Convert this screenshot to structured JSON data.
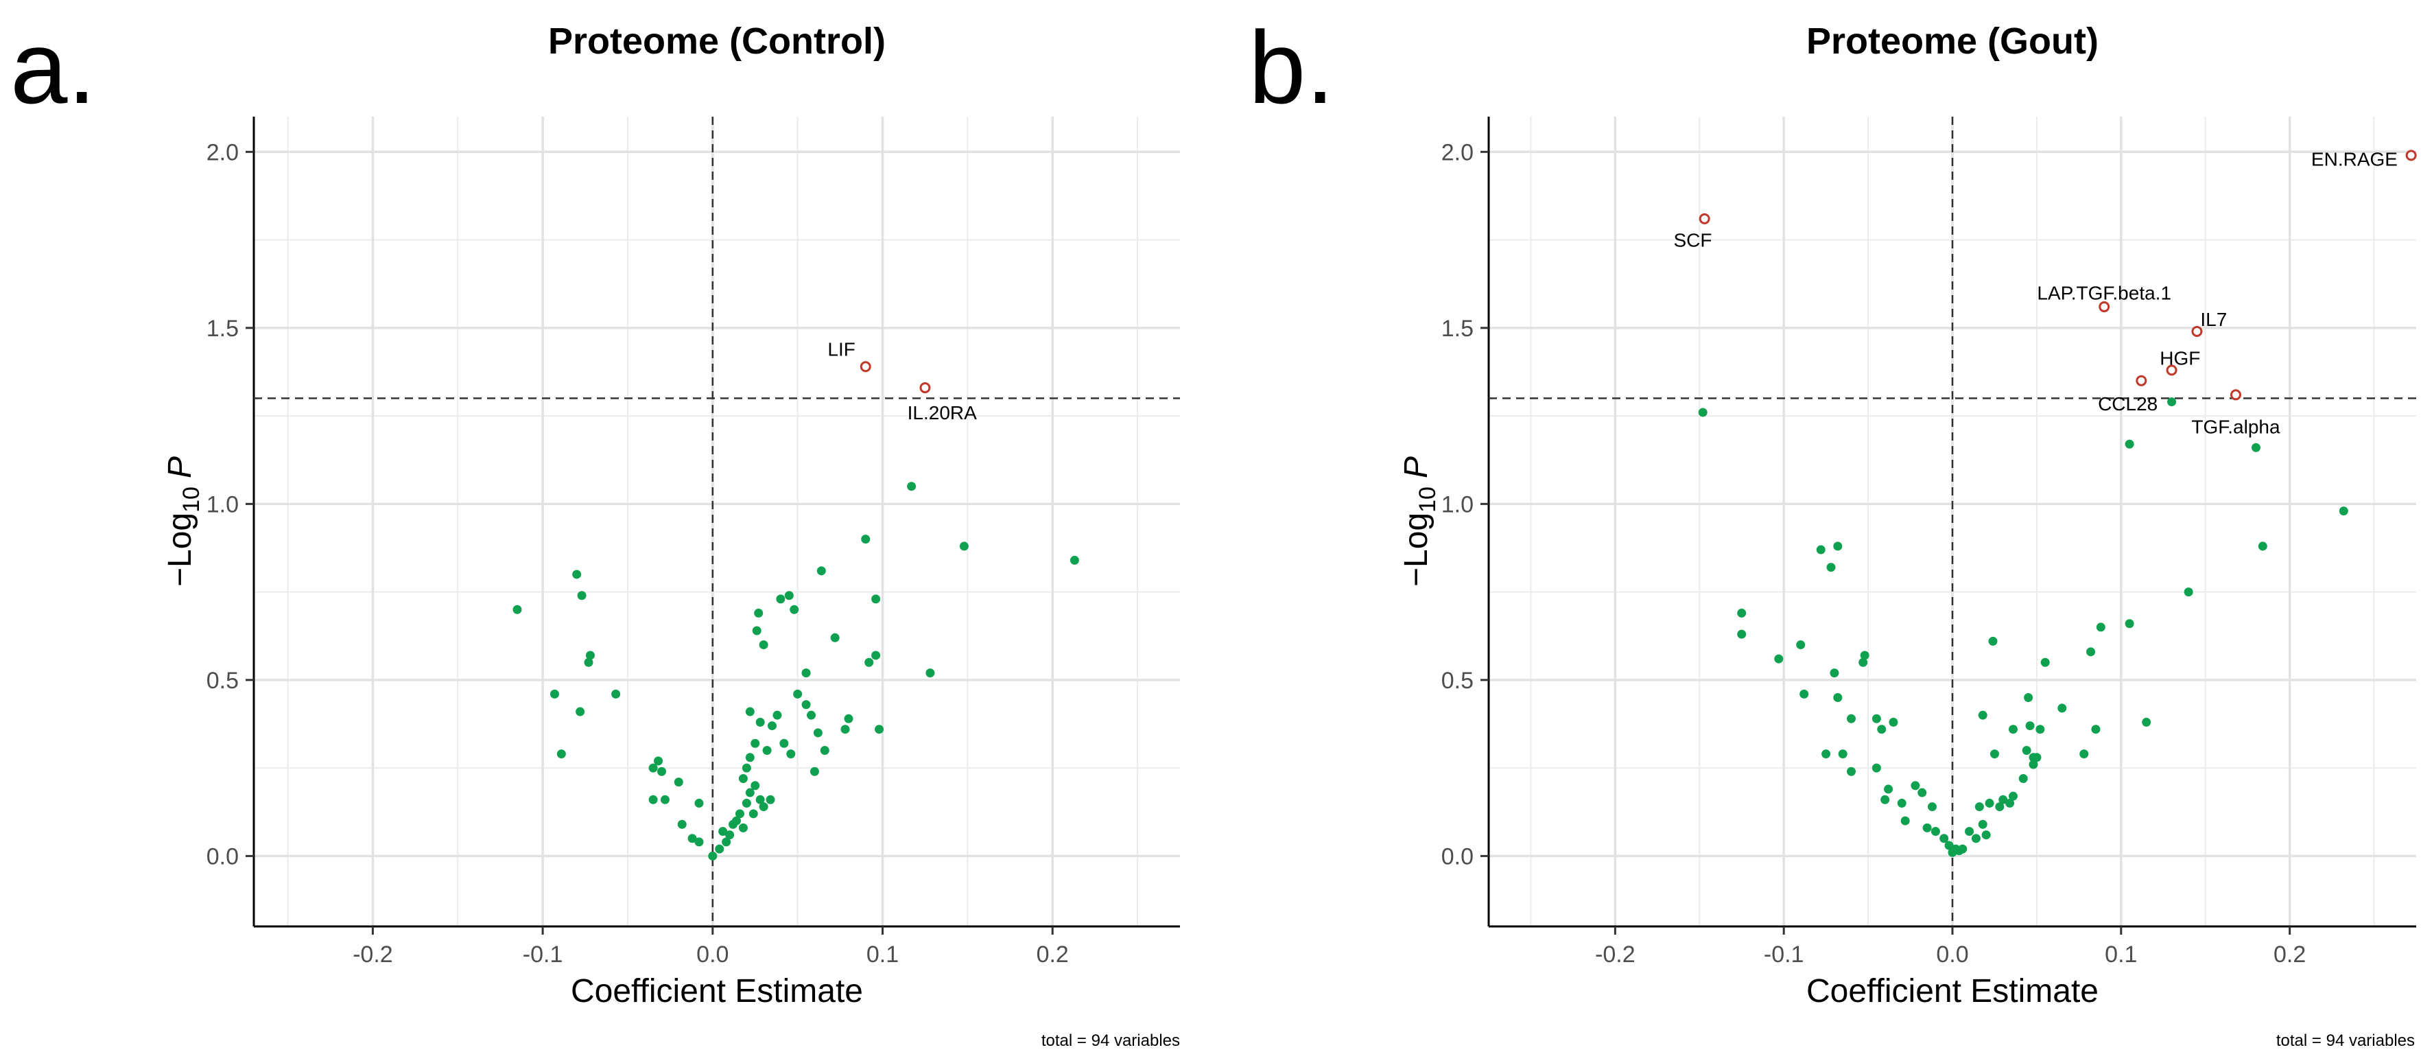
{
  "chart_data": [
    {
      "type": "scatter",
      "panel_letter": "a.",
      "title": "Proteome (Control)",
      "xlabel": "Coefficient Estimate",
      "ylabel_prefix": "−Log",
      "ylabel_subscript": "10",
      "ylabel_var": "P",
      "caption": "total = 94 variables",
      "xlim": [
        -0.27,
        0.275
      ],
      "ylim": [
        -0.2,
        2.1
      ],
      "xticks": [
        -0.2,
        -0.1,
        0.0,
        0.1,
        0.2
      ],
      "xtick_labels": [
        "-0.2",
        "-0.1",
        "0.0",
        "0.1",
        "0.2"
      ],
      "yticks": [
        0.0,
        0.5,
        1.0,
        1.5,
        2.0
      ],
      "ytick_labels": [
        "0.0",
        "0.5",
        "1.0",
        "1.5",
        "2.0"
      ],
      "threshold_y": 1.3,
      "vline_x": 0.0,
      "grid": true,
      "point_color": "#0fa14f",
      "highlight_color": "#c0392b",
      "points": [
        [
          -0.115,
          0.7
        ],
        [
          -0.08,
          0.8
        ],
        [
          -0.077,
          0.74
        ],
        [
          -0.072,
          0.57
        ],
        [
          -0.073,
          0.55
        ],
        [
          -0.093,
          0.46
        ],
        [
          -0.078,
          0.41
        ],
        [
          -0.057,
          0.46
        ],
        [
          -0.089,
          0.29
        ],
        [
          -0.032,
          0.27
        ],
        [
          -0.035,
          0.25
        ],
        [
          -0.03,
          0.24
        ],
        [
          -0.02,
          0.21
        ],
        [
          -0.028,
          0.16
        ],
        [
          -0.035,
          0.16
        ],
        [
          -0.018,
          0.09
        ],
        [
          -0.008,
          0.15
        ],
        [
          -0.012,
          0.05
        ],
        [
          -0.008,
          0.04
        ],
        [
          0.0,
          0.0
        ],
        [
          0.004,
          0.02
        ],
        [
          0.008,
          0.04
        ],
        [
          0.006,
          0.07
        ],
        [
          0.01,
          0.06
        ],
        [
          0.012,
          0.09
        ],
        [
          0.014,
          0.1
        ],
        [
          0.016,
          0.12
        ],
        [
          0.018,
          0.08
        ],
        [
          0.02,
          0.15
        ],
        [
          0.022,
          0.18
        ],
        [
          0.024,
          0.12
        ],
        [
          0.025,
          0.2
        ],
        [
          0.028,
          0.16
        ],
        [
          0.03,
          0.14
        ],
        [
          0.018,
          0.22
        ],
        [
          0.02,
          0.25
        ],
        [
          0.022,
          0.28
        ],
        [
          0.025,
          0.32
        ],
        [
          0.032,
          0.3
        ],
        [
          0.035,
          0.37
        ],
        [
          0.028,
          0.38
        ],
        [
          0.038,
          0.4
        ],
        [
          0.022,
          0.41
        ],
        [
          0.034,
          0.16
        ],
        [
          0.042,
          0.32
        ],
        [
          0.046,
          0.29
        ],
        [
          0.04,
          0.73
        ],
        [
          0.045,
          0.74
        ],
        [
          0.048,
          0.7
        ],
        [
          0.055,
          0.52
        ],
        [
          0.05,
          0.46
        ],
        [
          0.055,
          0.43
        ],
        [
          0.058,
          0.4
        ],
        [
          0.062,
          0.35
        ],
        [
          0.06,
          0.24
        ],
        [
          0.066,
          0.3
        ],
        [
          0.026,
          0.64
        ],
        [
          0.027,
          0.69
        ],
        [
          0.03,
          0.6
        ],
        [
          0.064,
          0.81
        ],
        [
          0.072,
          0.62
        ],
        [
          0.078,
          0.36
        ],
        [
          0.08,
          0.39
        ],
        [
          0.09,
          0.9
        ],
        [
          0.096,
          0.73
        ],
        [
          0.092,
          0.55
        ],
        [
          0.096,
          0.57
        ],
        [
          0.098,
          0.36
        ],
        [
          0.117,
          1.05
        ],
        [
          0.128,
          0.52
        ],
        [
          0.148,
          0.88
        ],
        [
          0.213,
          0.84
        ]
      ],
      "highlights": [
        {
          "label": "LIF",
          "x": 0.09,
          "y": 1.39,
          "label_dx": -0.006,
          "label_dy": 0.05,
          "anchor": "end"
        },
        {
          "label": "IL.20RA",
          "x": 0.125,
          "y": 1.33,
          "label_dx": 0.01,
          "label_dy": -0.07,
          "anchor": "middle"
        }
      ]
    },
    {
      "type": "scatter",
      "panel_letter": "b.",
      "title": "Proteome (Gout)",
      "xlabel": "Coefficient Estimate",
      "ylabel_prefix": "−Log",
      "ylabel_subscript": "10",
      "ylabel_var": "P",
      "caption": "total = 94 variables",
      "xlim": [
        -0.275,
        0.275
      ],
      "ylim": [
        -0.2,
        2.1
      ],
      "xticks": [
        -0.2,
        -0.1,
        0.0,
        0.1,
        0.2
      ],
      "xtick_labels": [
        "-0.2",
        "-0.1",
        "0.0",
        "0.1",
        "0.2"
      ],
      "yticks": [
        0.0,
        0.5,
        1.0,
        1.5,
        2.0
      ],
      "ytick_labels": [
        "0.0",
        "0.5",
        "1.0",
        "1.5",
        "2.0"
      ],
      "threshold_y": 1.3,
      "vline_x": 0.0,
      "grid": true,
      "point_color": "#0fa14f",
      "highlight_color": "#c0392b",
      "points": [
        [
          -0.148,
          1.26
        ],
        [
          -0.125,
          0.69
        ],
        [
          -0.125,
          0.63
        ],
        [
          -0.103,
          0.56
        ],
        [
          -0.09,
          0.6
        ],
        [
          -0.088,
          0.46
        ],
        [
          -0.078,
          0.87
        ],
        [
          -0.068,
          0.88
        ],
        [
          -0.072,
          0.82
        ],
        [
          -0.07,
          0.52
        ],
        [
          -0.068,
          0.45
        ],
        [
          -0.075,
          0.29
        ],
        [
          -0.065,
          0.29
        ],
        [
          -0.06,
          0.39
        ],
        [
          -0.052,
          0.57
        ],
        [
          -0.053,
          0.55
        ],
        [
          -0.045,
          0.39
        ],
        [
          -0.035,
          0.38
        ],
        [
          -0.042,
          0.36
        ],
        [
          -0.045,
          0.25
        ],
        [
          -0.06,
          0.24
        ],
        [
          -0.038,
          0.19
        ],
        [
          -0.04,
          0.16
        ],
        [
          -0.03,
          0.15
        ],
        [
          -0.022,
          0.2
        ],
        [
          -0.018,
          0.18
        ],
        [
          -0.012,
          0.14
        ],
        [
          -0.028,
          0.1
        ],
        [
          -0.015,
          0.08
        ],
        [
          -0.01,
          0.07
        ],
        [
          -0.005,
          0.05
        ],
        [
          -0.002,
          0.03
        ],
        [
          0.0,
          0.01
        ],
        [
          0.002,
          0.02
        ],
        [
          0.004,
          0.015
        ],
        [
          0.006,
          0.02
        ],
        [
          0.01,
          0.07
        ],
        [
          0.014,
          0.05
        ],
        [
          0.018,
          0.09
        ],
        [
          0.02,
          0.06
        ],
        [
          0.016,
          0.14
        ],
        [
          0.022,
          0.15
        ],
        [
          0.028,
          0.14
        ],
        [
          0.03,
          0.16
        ],
        [
          0.034,
          0.15
        ],
        [
          0.036,
          0.17
        ],
        [
          0.042,
          0.22
        ],
        [
          0.048,
          0.26
        ],
        [
          0.048,
          0.28
        ],
        [
          0.044,
          0.3
        ],
        [
          0.05,
          0.28
        ],
        [
          0.052,
          0.36
        ],
        [
          0.046,
          0.37
        ],
        [
          0.045,
          0.45
        ],
        [
          0.036,
          0.36
        ],
        [
          0.018,
          0.4
        ],
        [
          0.025,
          0.29
        ],
        [
          0.024,
          0.61
        ],
        [
          0.055,
          0.55
        ],
        [
          0.065,
          0.42
        ],
        [
          0.078,
          0.29
        ],
        [
          0.082,
          0.58
        ],
        [
          0.085,
          0.36
        ],
        [
          0.088,
          0.65
        ],
        [
          0.105,
          0.66
        ],
        [
          0.115,
          0.38
        ],
        [
          0.14,
          0.75
        ],
        [
          0.13,
          1.29
        ],
        [
          0.105,
          1.17
        ],
        [
          0.18,
          1.16
        ],
        [
          0.184,
          0.88
        ],
        [
          0.232,
          0.98
        ]
      ],
      "highlights": [
        {
          "label": "EN.RAGE",
          "x": 0.272,
          "y": 1.99,
          "label_dx": -0.008,
          "label_dy": -0.01,
          "anchor": "end"
        },
        {
          "label": "SCF",
          "x": -0.147,
          "y": 1.81,
          "label_dx": -0.007,
          "label_dy": -0.06,
          "anchor": "middle"
        },
        {
          "label": "LAP.TGF.beta.1",
          "x": 0.09,
          "y": 1.56,
          "label_dx": 0.0,
          "label_dy": 0.04,
          "anchor": "middle"
        },
        {
          "label": "IL7",
          "x": 0.145,
          "y": 1.49,
          "label_dx": 0.002,
          "label_dy": 0.035,
          "anchor": "start"
        },
        {
          "label": "HGF",
          "x": 0.13,
          "y": 1.38,
          "label_dx": 0.005,
          "label_dy": 0.035,
          "anchor": "middle"
        },
        {
          "label": "CCL28",
          "x": 0.112,
          "y": 1.35,
          "label_dx": -0.008,
          "label_dy": -0.065,
          "anchor": "middle"
        },
        {
          "label": "TGF.alpha",
          "x": 0.168,
          "y": 1.31,
          "label_dx": 0.0,
          "label_dy": -0.09,
          "anchor": "middle"
        }
      ]
    }
  ]
}
